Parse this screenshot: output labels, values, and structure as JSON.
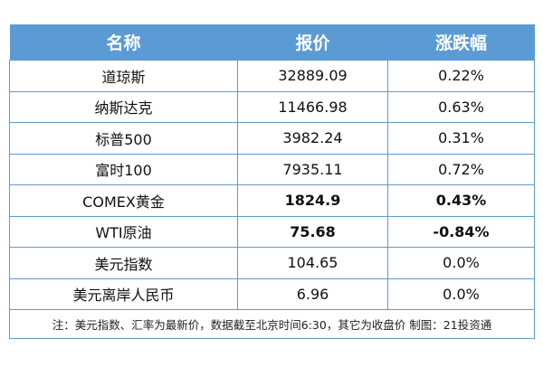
{
  "header": {
    "name": "名称",
    "price": "报价",
    "change": "涨跌幅"
  },
  "rows": [
    {
      "name": "道琼斯",
      "price": "32889.09",
      "change": "0.22%"
    },
    {
      "name": "纳斯达克",
      "price": "11466.98",
      "change": "0.63%"
    },
    {
      "name": "标普500",
      "price": "3982.24",
      "change": "0.31%"
    },
    {
      "name": "富时100",
      "price": "7935.11",
      "change": "0.72%"
    },
    {
      "name": "COMEX黄金",
      "price": "1824.9",
      "change": "0.43%"
    },
    {
      "name": "WTI原油",
      "price": "75.68",
      "change": "-0.84%"
    },
    {
      "name": "美元指数",
      "price": "104.65",
      "change": "0.0%"
    },
    {
      "name": "美元离岸人民币",
      "price": "6.96",
      "change": "0.0%"
    }
  ],
  "note": "注：美元指数、汇率为最新价，数据截至北京时间6:30，其它为收盘价 制图：21投资通",
  "colors": {
    "header_bg": "#5b9bd5",
    "border": "#5b9bd5"
  }
}
